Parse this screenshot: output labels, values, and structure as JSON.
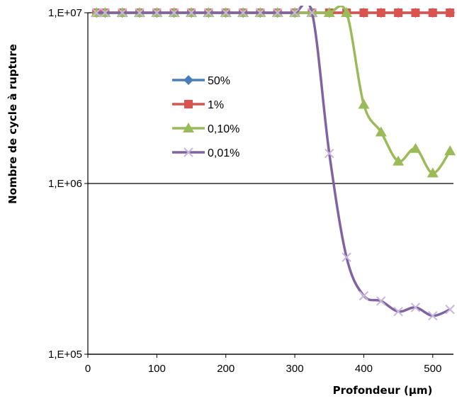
{
  "chart_data": {
    "type": "line",
    "xlabel": "Profondeur (µm)",
    "ylabel": "Nombre de cycle à rupture",
    "xlim": [
      0,
      530
    ],
    "ylim": [
      100000,
      10000000
    ],
    "y_scale": "log",
    "x_ticks": [
      0,
      100,
      200,
      300,
      400,
      500
    ],
    "x_tick_labels": [
      "0",
      "100",
      "200",
      "300",
      "400",
      "500"
    ],
    "y_ticks": [
      100000,
      1000000,
      10000000
    ],
    "y_tick_labels": [
      "1,E+05",
      "1,E+06",
      "1,E+07"
    ],
    "grid": "horizontal major lines",
    "legend_position": "inside upper left",
    "x": [
      12.5,
      25,
      50,
      75,
      100,
      125,
      150,
      175,
      200,
      225,
      250,
      275,
      300,
      325,
      350,
      375,
      400,
      425,
      450,
      475,
      500,
      525
    ],
    "series": [
      {
        "name": "50%",
        "color": "#4a7ebb",
        "marker": "diamond",
        "values": [
          10000000,
          10000000,
          10000000,
          10000000,
          10000000,
          10000000,
          10000000,
          10000000,
          10000000,
          10000000,
          10000000,
          10000000,
          10000000,
          10000000,
          10000000,
          10000000,
          10000000,
          10000000,
          10000000,
          10000000,
          10000000,
          10000000
        ]
      },
      {
        "name": "1%",
        "color": "#d9534f",
        "marker": "square",
        "values": [
          10000000,
          10000000,
          10000000,
          10000000,
          10000000,
          10000000,
          10000000,
          10000000,
          10000000,
          10000000,
          10000000,
          10000000,
          10000000,
          10000000,
          10000000,
          10000000,
          10000000,
          10000000,
          10000000,
          10000000,
          10000000,
          10000000
        ]
      },
      {
        "name": "0,10%",
        "color": "#9bbb59",
        "marker": "triangle",
        "values": [
          10000000,
          10000000,
          10000000,
          10000000,
          10000000,
          10000000,
          10000000,
          10000000,
          10000000,
          10000000,
          10000000,
          10000000,
          10000000,
          10000000,
          10000000,
          10000000,
          2900000,
          2000000,
          1350000,
          1600000,
          1150000,
          1550000
        ]
      },
      {
        "name": "0,01%",
        "color": "#8064a2",
        "marker": "x",
        "values": [
          10000000,
          10000000,
          10000000,
          10000000,
          10000000,
          10000000,
          10000000,
          10000000,
          10000000,
          10000000,
          10000000,
          10000000,
          10000000,
          10000000,
          1500000,
          370000,
          220000,
          205000,
          178000,
          188000,
          168000,
          183000
        ]
      }
    ]
  }
}
